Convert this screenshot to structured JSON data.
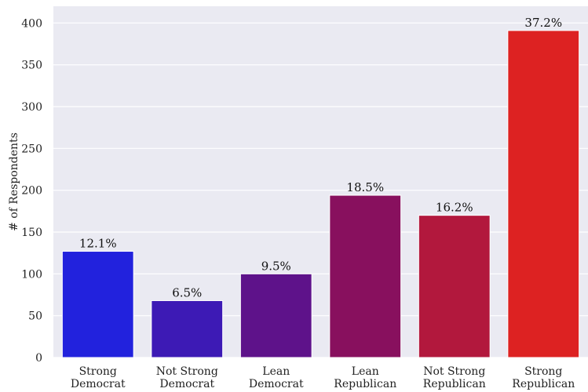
{
  "chart_data": {
    "type": "bar",
    "title": "",
    "xlabel": "",
    "ylabel": "# of Respondents",
    "ylim": [
      0,
      420
    ],
    "yticks": [
      0,
      50,
      100,
      150,
      200,
      250,
      300,
      350,
      400
    ],
    "grid": true,
    "categories": [
      [
        "Strong",
        "Democrat"
      ],
      [
        "Not Strong",
        "Democrat"
      ],
      [
        "Lean",
        "Democrat"
      ],
      [
        "Lean",
        "Republican"
      ],
      [
        "Not Strong",
        "Republican"
      ],
      [
        "Strong",
        "Republican"
      ]
    ],
    "values": [
      127,
      68,
      100,
      194,
      170,
      391
    ],
    "data_labels": [
      "12.1%",
      "6.5%",
      "9.5%",
      "18.5%",
      "16.2%",
      "37.2%"
    ],
    "colors": [
      "#2222dd",
      "#3d1ab5",
      "#5e128a",
      "#88105e",
      "#b2183d",
      "#dd2222"
    ],
    "background_color": "#eaeaf2",
    "grid_color": "#ffffff"
  }
}
